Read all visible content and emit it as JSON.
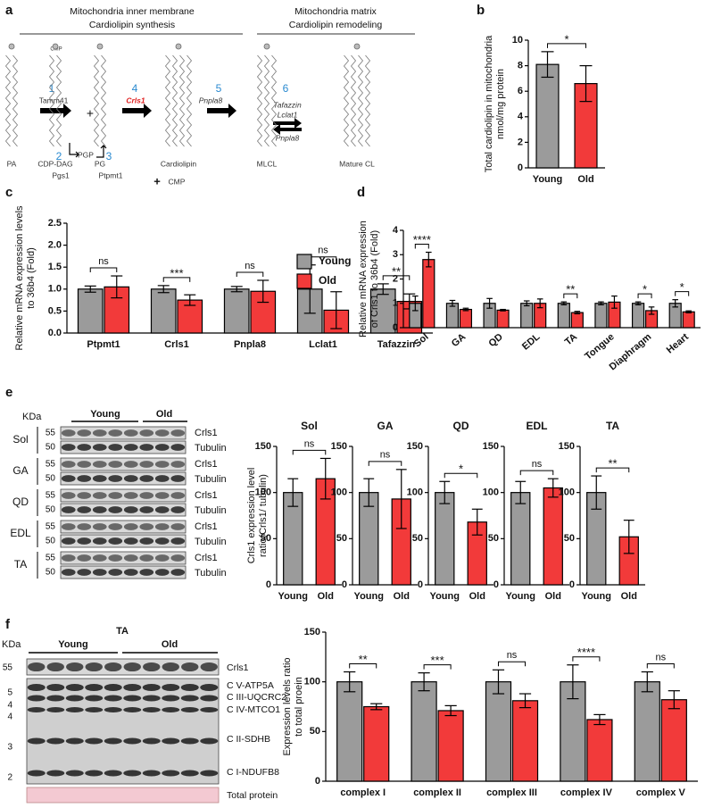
{
  "panel_labels": [
    "a",
    "b",
    "c",
    "d",
    "e",
    "f"
  ],
  "diagram": {
    "header_left": [
      "Mitochondria inner membrane",
      "Cardiolipin synthesis"
    ],
    "header_right": [
      "Mitochondria matrix",
      "Cardiolipin remodeling"
    ],
    "steps": [
      "1",
      "2",
      "3",
      "4",
      "5",
      "6"
    ],
    "enzymes": {
      "tamm41": "Tamm41",
      "crls1": "Crls1",
      "pnpla8": "Pnpla8",
      "tafazzin": "Tafazzin",
      "lclat1": "Lclat1",
      "pnpla8_back": "Pnpla8",
      "pgs1": "Pgs1",
      "ptpmt1": "Ptpmt1"
    },
    "molecules": [
      "PA",
      "CDP-DAG",
      "PG",
      "Cardiolipin",
      "MLCL",
      "Mature CL"
    ],
    "pgp": "PGP",
    "cmp_top": "CMP",
    "plus_top": "+",
    "plus_bottom": "+",
    "cmp_bottom": "CMP"
  },
  "chart_data": [
    {
      "type": "bar",
      "categories": [
        "Young",
        "Old"
      ],
      "values": [
        8.1,
        6.6
      ],
      "errors": [
        1.0,
        1.4
      ],
      "colors": [
        "#9b9b9b",
        "#f23a3a"
      ],
      "ylim": [
        0,
        10
      ],
      "yticks": [
        0,
        2,
        4,
        6,
        8,
        10
      ],
      "ylabel": [
        "Total cardiolipin in mitochondria",
        "nmol/mg protein"
      ],
      "significance": "*"
    },
    {
      "type": "grouped_bar",
      "categories": [
        "Ptpmt1",
        "Crls1",
        "Pnpla8",
        "Lclat1",
        "Tafazzin"
      ],
      "series": [
        {
          "name": "Young",
          "color": "#9b9b9b",
          "values": [
            1.0,
            1.0,
            1.0,
            1.0,
            1.0
          ],
          "errors": [
            0.07,
            0.08,
            0.06,
            0.55,
            0.12
          ]
        },
        {
          "name": "Old",
          "color": "#f23a3a",
          "values": [
            1.05,
            0.75,
            0.95,
            0.52,
            0.72
          ],
          "errors": [
            0.25,
            0.12,
            0.25,
            0.42,
            0.17
          ]
        }
      ],
      "ylim": [
        0,
        2.5
      ],
      "yticks": [
        {
          "value": 0,
          "label": "0.0"
        },
        0.5,
        {
          "value": 1,
          "label": "1.0"
        },
        1.5,
        {
          "value": 2,
          "label": "2.0"
        },
        2.5
      ],
      "ylabel": [
        "Relative mRNA expression levels",
        "to 36b4 (Fold)"
      ],
      "significance": [
        "ns",
        "***",
        "ns",
        "ns",
        "**"
      ],
      "legend": "right"
    },
    {
      "type": "grouped_bar",
      "categories": [
        "Sol",
        "GA",
        "QD",
        "EDL",
        "TA",
        "Tongue",
        "Diaphragm",
        "Heart"
      ],
      "series": [
        {
          "color": "#9b9b9b",
          "values": [
            1.0,
            1.0,
            1.0,
            1.0,
            1.0,
            1.0,
            1.0,
            1.0
          ],
          "errors": [
            0.3,
            0.12,
            0.2,
            0.1,
            0.06,
            0.06,
            0.06,
            0.15
          ]
        },
        {
          "color": "#f23a3a",
          "values": [
            2.8,
            0.75,
            0.72,
            1.0,
            0.62,
            1.05,
            0.7,
            0.65
          ],
          "errors": [
            0.3,
            0.05,
            0.03,
            0.18,
            0.05,
            0.25,
            0.15,
            0.04
          ]
        }
      ],
      "ylim": [
        0,
        4
      ],
      "yticks": [
        0,
        1,
        2,
        3,
        4
      ],
      "ylabel": [
        "Relative mRNA expression",
        "of Crls1 to 36b4 (Fold)"
      ],
      "significance": [
        "****",
        null,
        null,
        null,
        "**",
        null,
        "*",
        "*"
      ]
    },
    {
      "type": "bar",
      "title": "Sol",
      "categories": [
        "Young",
        "Old"
      ],
      "values": [
        100,
        115
      ],
      "errors": [
        15,
        22
      ],
      "colors": [
        "#9b9b9b",
        "#f23a3a"
      ],
      "ylim": [
        0,
        150
      ],
      "yticks": [
        0,
        50,
        100,
        150
      ],
      "ylabel": [
        "Crls1  expression level",
        "ratio(Crls1/ tubulin)"
      ],
      "significance": "ns"
    },
    {
      "type": "bar",
      "title": "GA",
      "categories": [
        "Young",
        "Old"
      ],
      "values": [
        100,
        93
      ],
      "errors": [
        15,
        32
      ],
      "colors": [
        "#9b9b9b",
        "#f23a3a"
      ],
      "ylim": [
        0,
        150
      ],
      "yticks": [
        0,
        50,
        100,
        150
      ],
      "significance": "ns"
    },
    {
      "type": "bar",
      "title": "QD",
      "categories": [
        "Young",
        "Old"
      ],
      "values": [
        100,
        68
      ],
      "errors": [
        12,
        14
      ],
      "colors": [
        "#9b9b9b",
        "#f23a3a"
      ],
      "ylim": [
        0,
        150
      ],
      "yticks": [
        0,
        50,
        100,
        150
      ],
      "significance": "*"
    },
    {
      "type": "bar",
      "title": "EDL",
      "categories": [
        "Young",
        "Old"
      ],
      "values": [
        100,
        105
      ],
      "errors": [
        12,
        10
      ],
      "colors": [
        "#9b9b9b",
        "#f23a3a"
      ],
      "ylim": [
        0,
        150
      ],
      "yticks": [
        0,
        50,
        100,
        150
      ],
      "significance": "ns"
    },
    {
      "type": "bar",
      "title": "TA",
      "categories": [
        "Young",
        "Old"
      ],
      "values": [
        100,
        52
      ],
      "errors": [
        18,
        18
      ],
      "colors": [
        "#9b9b9b",
        "#f23a3a"
      ],
      "ylim": [
        0,
        150
      ],
      "yticks": [
        0,
        50,
        100,
        150
      ],
      "significance": "**"
    },
    {
      "type": "grouped_bar",
      "categories": [
        "complex I",
        "complex II",
        "complex III",
        "complex IV",
        "complex V"
      ],
      "series": [
        {
          "color": "#9b9b9b",
          "values": [
            100,
            100,
            100,
            100,
            100
          ],
          "errors": [
            10,
            9,
            12,
            17,
            10
          ]
        },
        {
          "color": "#f23a3a",
          "values": [
            75,
            71,
            81,
            62,
            82
          ],
          "errors": [
            3,
            5,
            7,
            5,
            9
          ]
        }
      ],
      "ylim": [
        0,
        150
      ],
      "yticks": [
        0,
        50,
        100,
        150
      ],
      "ylabel": [
        "Expression levels ratio",
        "to total proein"
      ],
      "significance": [
        "**",
        "***",
        "ns",
        "****",
        "ns"
      ]
    }
  ],
  "blot_e": {
    "kda": "KDa",
    "young": "Young",
    "old": "Old",
    "rows": [
      {
        "tissue": "Sol",
        "markers": [
          "55",
          "50"
        ],
        "bands": [
          "Crls1",
          "Tubulin"
        ]
      },
      {
        "tissue": "GA",
        "markers": [
          "55",
          "50"
        ],
        "bands": [
          "Crls1",
          "Tubulin"
        ]
      },
      {
        "tissue": "QD",
        "markers": [
          "55",
          "50"
        ],
        "bands": [
          "Crls1",
          "Tubulin"
        ]
      },
      {
        "tissue": "EDL",
        "markers": [
          "55",
          "50"
        ],
        "bands": [
          "Crls1",
          "Tubulin"
        ]
      },
      {
        "tissue": "TA",
        "markers": [
          "55",
          "50"
        ],
        "bands": [
          "Crls1",
          "Tubulin"
        ]
      }
    ]
  },
  "blot_f": {
    "title": "TA",
    "kda": "KDa",
    "young": "Young",
    "old": "Old",
    "markers": [
      "55",
      "5",
      "4",
      "4",
      "3",
      "2"
    ],
    "bands": [
      "Crls1",
      "C V-ATP5A",
      "C III-UQCRC2",
      "C IV-MTCO1",
      "C II-SDHB",
      "C I-NDUFB8",
      "Total protein"
    ]
  }
}
